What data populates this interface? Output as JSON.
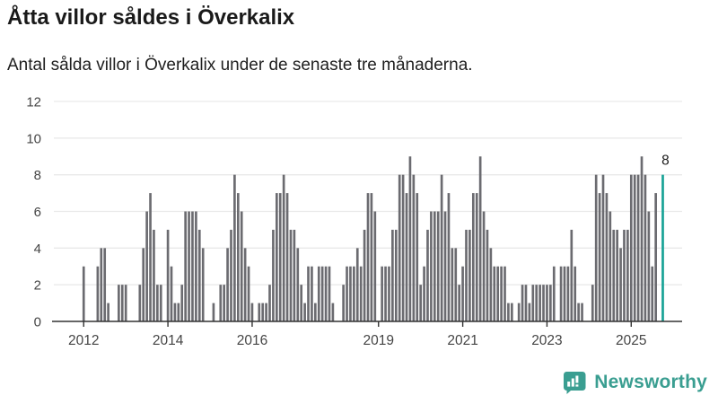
{
  "header": {
    "title": "Åtta villor såldes i Överkalix",
    "subtitle": "Antal sålda villor i Överkalix under de senaste tre månaderna."
  },
  "chart_data": {
    "type": "bar",
    "title": "Åtta villor såldes i Överkalix",
    "subtitle": "Antal sålda villor i Överkalix under de senaste tre månaderna.",
    "x_start": "2012-01",
    "x_end": "2025-10",
    "values": [
      3,
      0,
      0,
      0,
      3,
      4,
      4,
      1,
      0,
      0,
      2,
      2,
      2,
      0,
      0,
      0,
      2,
      4,
      6,
      7,
      5,
      2,
      2,
      0,
      5,
      3,
      1,
      1,
      2,
      6,
      6,
      6,
      6,
      5,
      4,
      0,
      0,
      1,
      0,
      2,
      2,
      4,
      5,
      8,
      7,
      6,
      4,
      3,
      1,
      0,
      1,
      1,
      1,
      2,
      5,
      7,
      7,
      8,
      7,
      5,
      5,
      4,
      2,
      1,
      3,
      3,
      1,
      3,
      3,
      3,
      3,
      1,
      0,
      0,
      2,
      3,
      3,
      3,
      4,
      3,
      5,
      7,
      7,
      6,
      0,
      3,
      3,
      3,
      5,
      5,
      8,
      8,
      7,
      9,
      8,
      7,
      2,
      3,
      5,
      6,
      6,
      6,
      8,
      6,
      7,
      4,
      4,
      2,
      3,
      5,
      5,
      7,
      7,
      9,
      6,
      5,
      4,
      3,
      3,
      3,
      3,
      1,
      1,
      0,
      1,
      2,
      2,
      1,
      2,
      2,
      2,
      2,
      2,
      2,
      3,
      0,
      3,
      3,
      3,
      5,
      3,
      1,
      1,
      0,
      0,
      2,
      8,
      7,
      8,
      7,
      6,
      5,
      5,
      4,
      5,
      5,
      8,
      8,
      8,
      9,
      8,
      6,
      3,
      7,
      0,
      8
    ],
    "highlight_index": 165,
    "annotation": {
      "label": "8",
      "value": 8
    },
    "ylim": [
      0,
      12
    ],
    "y_ticks": [
      0,
      2,
      4,
      6,
      8,
      10,
      12
    ],
    "x_ticks": [
      {
        "label": "2012",
        "month": 0
      },
      {
        "label": "2014",
        "month": 24
      },
      {
        "label": "2016",
        "month": 48
      },
      {
        "label": "2019",
        "month": 84
      },
      {
        "label": "2021",
        "month": 108
      },
      {
        "label": "2023",
        "month": 132
      },
      {
        "label": "2025",
        "month": 156
      }
    ],
    "grid": true,
    "legend": "none",
    "colors": {
      "bar": "#6b6b70",
      "highlight": "#16a296",
      "grid": "#e9e9e9",
      "axis": "#333333",
      "tick_label": "#454545",
      "annotation": "#1a1a1a"
    }
  },
  "footer": {
    "brand": "Newsworthy",
    "brand_color": "#3a9e91"
  }
}
